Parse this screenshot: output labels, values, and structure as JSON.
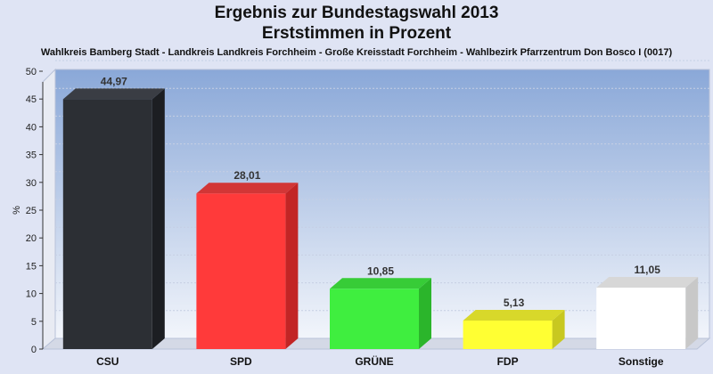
{
  "chart_data": {
    "type": "bar",
    "title": "Ergebnis zur Bundestagswahl 2013",
    "title_line2": "Erststimmen in Prozent",
    "subtitle": "Wahlkreis Bamberg Stadt - Landkreis Landkreis Forchheim - Große Kreisstadt Forchheim - Wahlbezirk Pfarrzentrum Don Bosco I (0017)",
    "ylabel": "%",
    "ylim": [
      0,
      50
    ],
    "yticks": [
      "0",
      "5",
      "10",
      "15",
      "20",
      "25",
      "30",
      "35",
      "40",
      "45",
      "50"
    ],
    "categories": [
      "CSU",
      "SPD",
      "GRÜNE",
      "FDP",
      "Sonstige"
    ],
    "values": [
      44.97,
      28.01,
      10.85,
      5.13,
      11.05
    ],
    "value_labels": [
      "44,97",
      "28,01",
      "10,85",
      "5,13",
      "11,05"
    ],
    "colors": [
      "#2c2f34",
      "#ff3a3a",
      "#3fee3f",
      "#ffff33",
      "#ffffff"
    ],
    "side_colors": [
      "#1c1e22",
      "#c22525",
      "#2bb52b",
      "#c8c820",
      "#c8c8c8"
    ],
    "top_colors": [
      "#3a3d44",
      "#d23636",
      "#37cc37",
      "#d8d82a",
      "#d7d7d7"
    ],
    "grid": true
  }
}
